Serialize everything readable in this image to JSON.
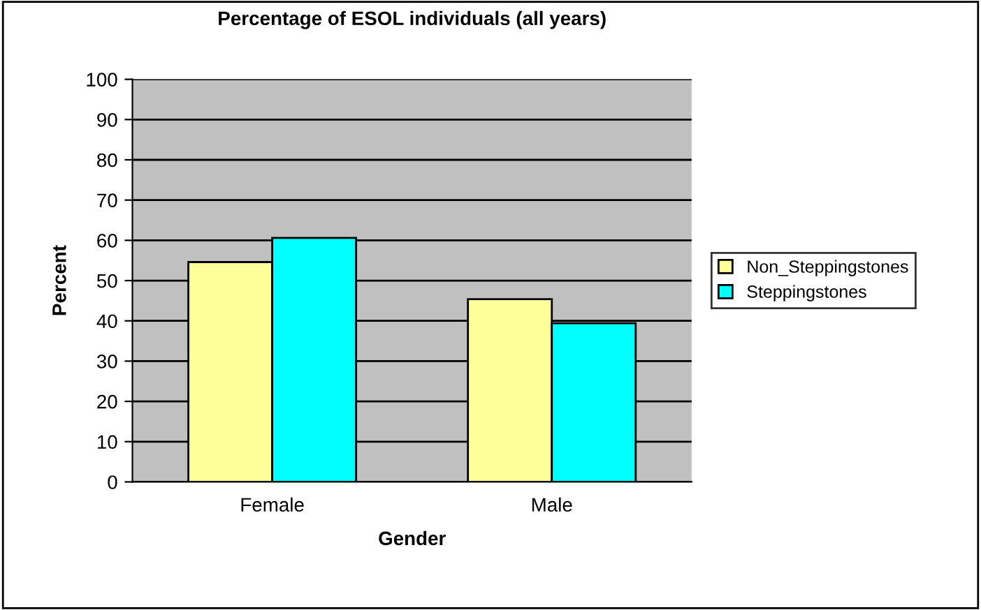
{
  "chart_data": {
    "type": "bar",
    "title": "Percentage of ESOL individuals (all years)",
    "xlabel": "Gender",
    "ylabel": "Percent",
    "categories": [
      "Female",
      "Male"
    ],
    "series": [
      {
        "name": "Non_Steppingstones",
        "color": "#ffff99",
        "values": [
          54.6,
          45.4
        ]
      },
      {
        "name": "Steppingstones",
        "color": "#00ffff",
        "values": [
          60.6,
          39.4
        ]
      }
    ],
    "ylim": [
      0,
      100
    ],
    "yticks": [
      0,
      10,
      20,
      30,
      40,
      50,
      60,
      70,
      80,
      90,
      100
    ],
    "grid": "y",
    "legend": "right"
  }
}
